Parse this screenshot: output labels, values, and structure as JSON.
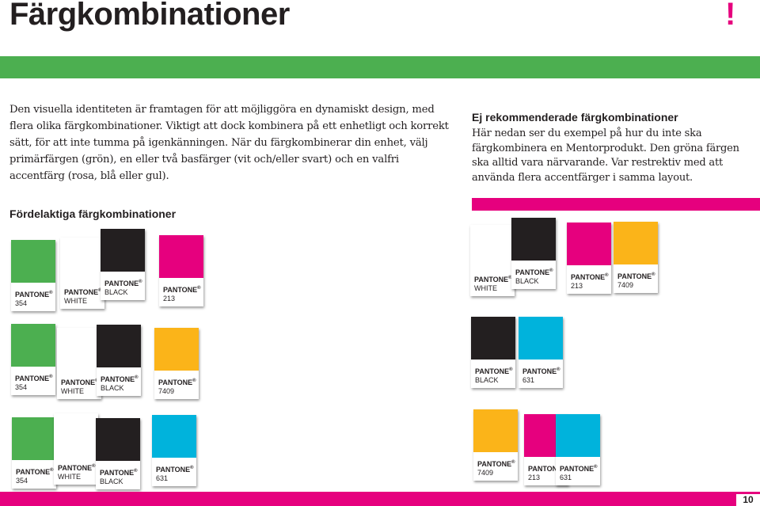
{
  "page": {
    "title": "Färgkombinationer",
    "exclamation": "!",
    "intro": "Den visuella identiteten är framtagen för att möjliggöra en dynamiskt design, med flera olika färgkombinationer. Viktigt att dock kombinera på ett enhetligt och korrekt sätt, för att inte tumma på igenkänningen. När du färgkombinerar din enhet, välj primärfärgen (grön), en eller två basfärger (vit och/eller svart) och en valfri accentfärg (rosa, blå eller gul).",
    "warning_heading": "Ej rekommenderade färgkombinationer",
    "warning_body": "Här nedan ser du exempel på hur du inte ska färgkombinera en Mentorprodukt. Den gröna färgen ska alltid vara närvarande. Var restrektiv med att använda flera accentfärger i samma layout.",
    "good_heading": "Fördelaktiga färgkombinationer",
    "page_number": "10"
  },
  "colors": {
    "green": "#4caf50",
    "white": "#ffffff",
    "black": "#231f20",
    "pink": "#e6007e",
    "yellow": "#fbb419",
    "cyan": "#00b3dc"
  },
  "swatch_brand": "PANTONE",
  "swatch_mark": "®",
  "good_combos": [
    [
      {
        "code": "354",
        "color": "#4caf50"
      },
      {
        "code": "WHITE",
        "color": "#ffffff"
      },
      {
        "code": "BLACK",
        "color": "#231f20"
      },
      {
        "code": "213",
        "color": "#e6007e"
      }
    ],
    [
      {
        "code": "354",
        "color": "#4caf50"
      },
      {
        "code": "WHITE",
        "color": "#ffffff"
      },
      {
        "code": "BLACK",
        "color": "#231f20"
      },
      {
        "code": "7409",
        "color": "#fbb419"
      }
    ],
    [
      {
        "code": "354",
        "color": "#4caf50"
      },
      {
        "code": "WHITE",
        "color": "#ffffff"
      },
      {
        "code": "BLACK",
        "color": "#231f20"
      },
      {
        "code": "631",
        "color": "#00b3dc"
      }
    ]
  ],
  "bad_combos": [
    [
      {
        "code": "WHITE",
        "color": "#ffffff"
      },
      {
        "code": "BLACK",
        "color": "#231f20"
      },
      {
        "code": "213",
        "color": "#e6007e"
      },
      {
        "code": "7409",
        "color": "#fbb419"
      }
    ],
    [
      {
        "code": "BLACK",
        "color": "#231f20"
      },
      {
        "code": "631",
        "color": "#00b3dc"
      }
    ],
    [
      {
        "code": "7409",
        "color": "#fbb419"
      },
      {
        "code": "213",
        "color": "#e6007e"
      },
      {
        "code": "631",
        "color": "#00b3dc"
      }
    ]
  ]
}
